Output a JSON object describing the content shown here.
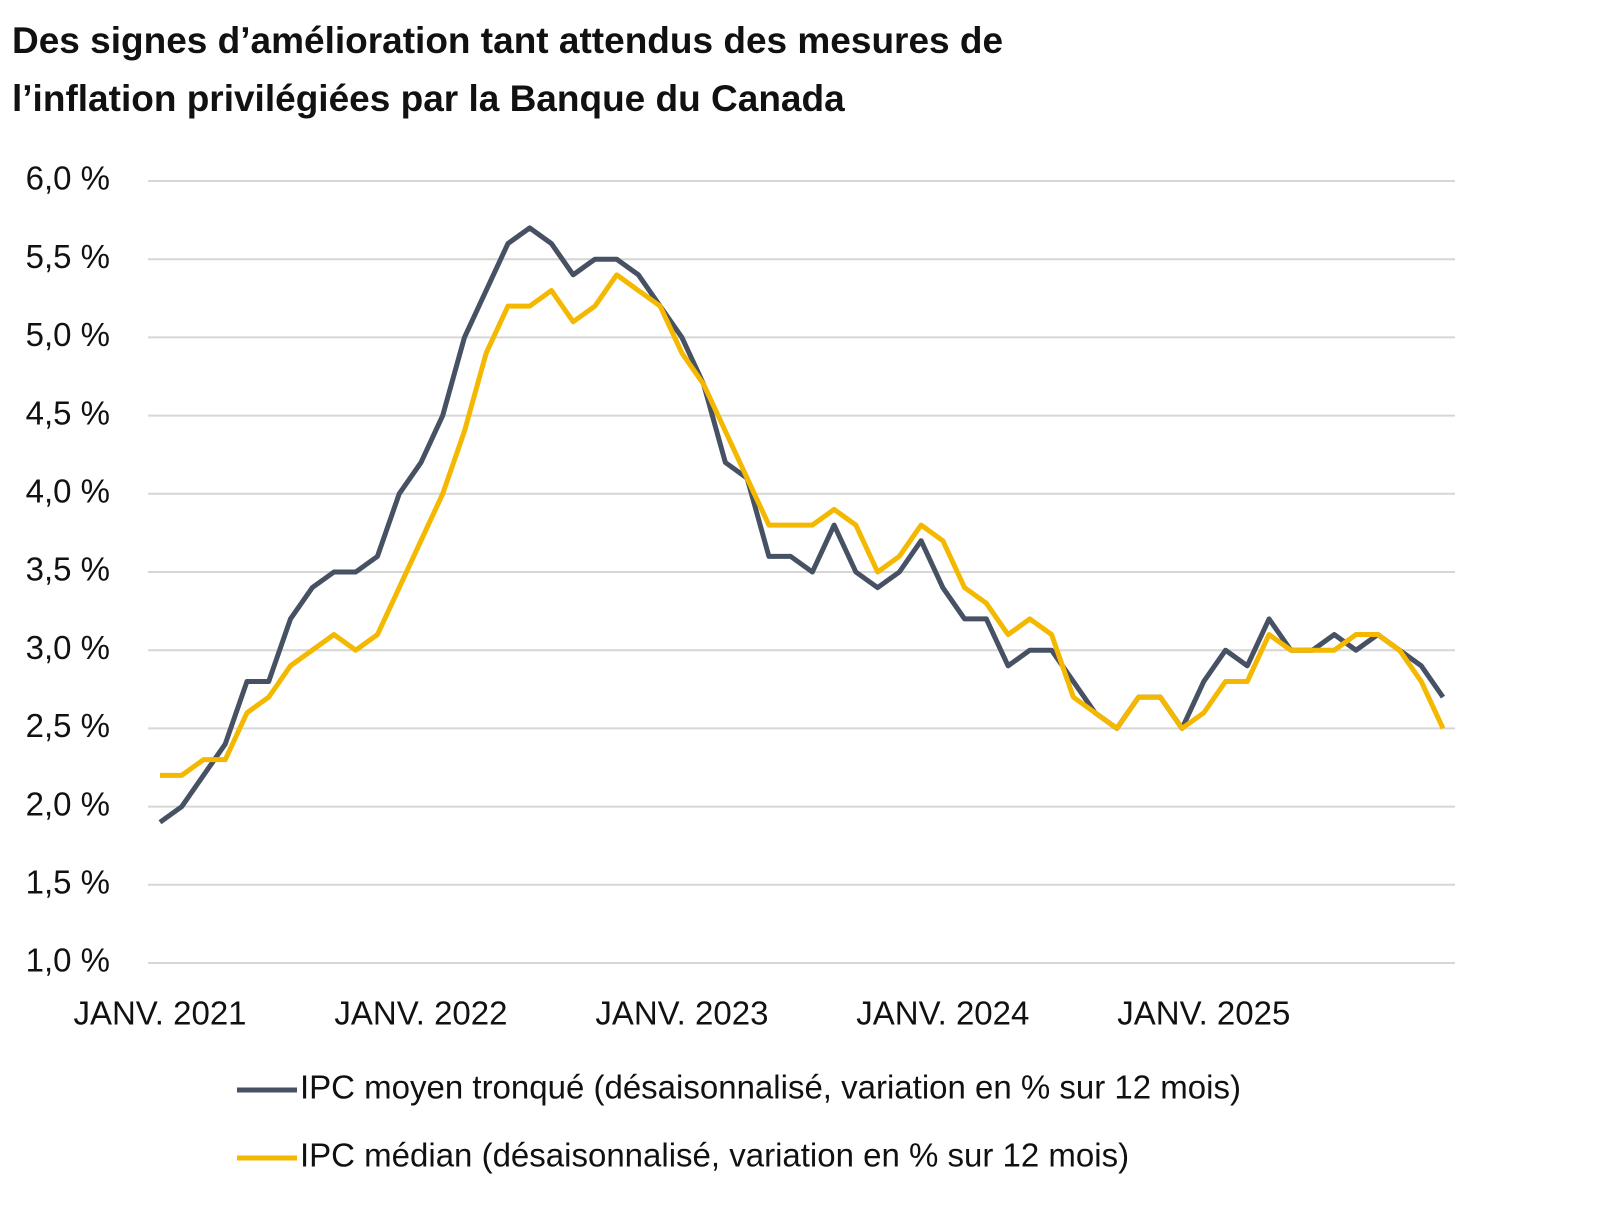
{
  "chart_data": {
    "type": "line",
    "title": "Des signes d’amélioration tant attendus des mesures de l’inflation privilégiées par la Banque du Canada",
    "categories": [
      "JANV. 2021",
      null,
      null,
      null,
      null,
      null,
      null,
      null,
      null,
      null,
      null,
      null,
      "JANV. 2022",
      null,
      null,
      null,
      null,
      null,
      null,
      null,
      null,
      null,
      null,
      null,
      "JANV. 2023",
      null,
      null,
      null,
      null,
      null,
      null,
      null,
      null,
      null,
      null,
      null,
      "JANV. 2024",
      null,
      null,
      null,
      null,
      null,
      null,
      null,
      null,
      null,
      null,
      null,
      "JANV. 2025",
      null,
      null,
      null,
      null,
      null,
      null,
      null,
      null,
      null,
      null,
      null
    ],
    "series": [
      {
        "name": "IPC moyen tronqué (désaisonnalisé, variation en % sur 12 mois)",
        "color": "#465263",
        "values": [
          1.9,
          2.0,
          2.2,
          2.4,
          2.8,
          2.8,
          3.2,
          3.4,
          3.5,
          3.5,
          3.6,
          4.0,
          4.2,
          4.5,
          5.0,
          5.3,
          5.6,
          5.7,
          5.6,
          5.4,
          5.5,
          5.5,
          5.4,
          5.2,
          5.0,
          4.7,
          4.2,
          4.1,
          3.6,
          3.6,
          3.5,
          3.8,
          3.5,
          3.4,
          3.5,
          3.7,
          3.4,
          3.2,
          3.2,
          2.9,
          3.0,
          3.0,
          2.8,
          2.6,
          2.5,
          2.7,
          2.7,
          2.5,
          2.8,
          3.0,
          2.9,
          3.2,
          3.0,
          3.0,
          3.1,
          3.0,
          3.1,
          3.0,
          2.9,
          2.7
        ]
      },
      {
        "name": "IPC médian (désaisonnalisé, variation en % sur 12 mois)",
        "color": "#f5b800",
        "values": [
          2.2,
          2.2,
          2.3,
          2.3,
          2.6,
          2.7,
          2.9,
          3.0,
          3.1,
          3.0,
          3.1,
          3.4,
          3.7,
          4.0,
          4.4,
          4.9,
          5.2,
          5.2,
          5.3,
          5.1,
          5.2,
          5.4,
          5.3,
          5.2,
          4.9,
          4.7,
          4.4,
          4.1,
          3.8,
          3.8,
          3.8,
          3.9,
          3.8,
          3.5,
          3.6,
          3.8,
          3.7,
          3.4,
          3.3,
          3.1,
          3.2,
          3.1,
          2.7,
          2.6,
          2.5,
          2.7,
          2.7,
          2.5,
          2.6,
          2.8,
          2.8,
          3.1,
          3.0,
          3.0,
          3.0,
          3.1,
          3.1,
          3.0,
          2.8,
          2.5
        ]
      }
    ],
    "ylim": [
      1.0,
      6.0
    ],
    "yticks": [
      {
        "value": 1.0,
        "label": "1,0 %"
      },
      {
        "value": 1.5,
        "label": "1,5 %"
      },
      {
        "value": 2.0,
        "label": "2,0 %"
      },
      {
        "value": 2.5,
        "label": "2,5 %"
      },
      {
        "value": 3.0,
        "label": "3,0 %"
      },
      {
        "value": 3.5,
        "label": "3,5 %"
      },
      {
        "value": 4.0,
        "label": "4,0 %"
      },
      {
        "value": 4.5,
        "label": "4,5 %"
      },
      {
        "value": 5.0,
        "label": "5,0 %"
      },
      {
        "value": 5.5,
        "label": "5,5 %"
      },
      {
        "value": 6.0,
        "label": "6,0 %"
      }
    ],
    "grid": true
  }
}
